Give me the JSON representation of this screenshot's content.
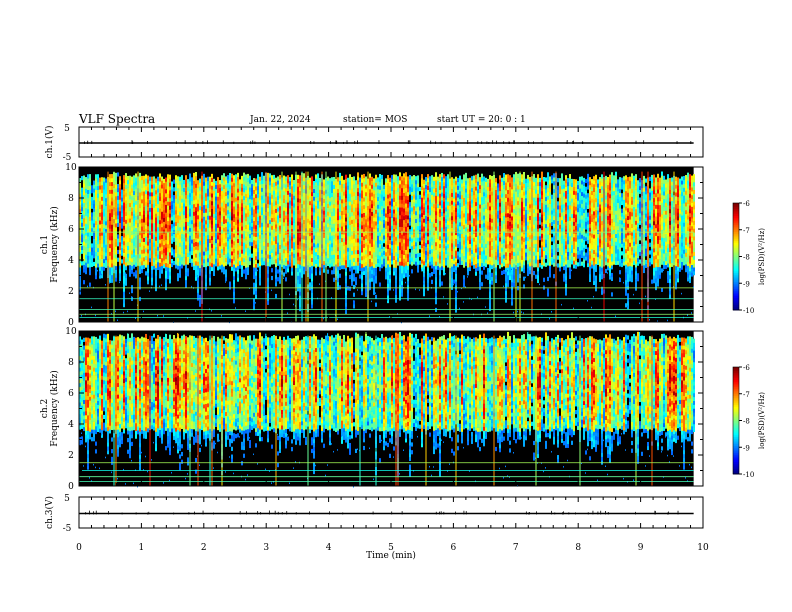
{
  "header": {
    "title": "VLF Spectra",
    "date": "Jan. 22, 2024",
    "station": "station= MOS",
    "start_ut": "start UT =  20: 0 : 1"
  },
  "chart_data": [
    {
      "type": "line",
      "panel": "ch.1 waveform",
      "ylabel": "ch.1(V)",
      "ylim": [
        -5,
        5
      ],
      "y_ticks": [
        "5",
        "-5"
      ],
      "series": [
        {
          "values_note": "flat trace",
          "level": 0
        }
      ]
    },
    {
      "type": "heatmap",
      "panel": "ch.1 spectrogram",
      "ylabel": "ch.1 Frequency (kHz)",
      "ylim": [
        0,
        10
      ],
      "y_ticks": [
        "0",
        "2",
        "4",
        "6",
        "8",
        "10"
      ],
      "xlim": [
        0,
        10
      ],
      "colorbar": {
        "label": "log(PSD)(V²/Hz)",
        "ticks": [
          "-6",
          "-7",
          "-8",
          "-9",
          "-10"
        ],
        "range": [
          -10,
          -6
        ]
      },
      "band_khz": [
        3.5,
        9.5
      ],
      "horizontal_lines_khz": [
        0.3,
        0.5,
        0.8,
        1.5,
        2.2,
        5.8
      ]
    },
    {
      "type": "heatmap",
      "panel": "ch.2 spectrogram",
      "ylabel": "ch.2 Frequency (kHz)",
      "ylim": [
        0,
        10
      ],
      "y_ticks": [
        "0",
        "2",
        "4",
        "6",
        "8",
        "10"
      ],
      "xlim": [
        0,
        10
      ],
      "colorbar": {
        "label": "log(PSD)(V²/Hz)",
        "ticks": [
          "-6",
          "-7",
          "-8",
          "-9",
          "-10"
        ],
        "range": [
          -10,
          -6
        ]
      },
      "band_khz": [
        3.5,
        9.7
      ],
      "horizontal_lines_khz": [
        0.3,
        0.6,
        1.0,
        1.5
      ]
    },
    {
      "type": "line",
      "panel": "ch.3 waveform",
      "ylabel": "ch.3(V)",
      "ylim": [
        -5,
        5
      ],
      "y_ticks": [
        "5",
        "-5"
      ],
      "series": [
        {
          "values_note": "flat trace",
          "level": 0
        }
      ]
    }
  ],
  "x_axis": {
    "label": "Time (min)",
    "ticks": [
      "0",
      "1",
      "2",
      "3",
      "4",
      "5",
      "6",
      "7",
      "8",
      "9",
      "10"
    ],
    "range": [
      0,
      10
    ],
    "data_end_min": 9.85
  }
}
